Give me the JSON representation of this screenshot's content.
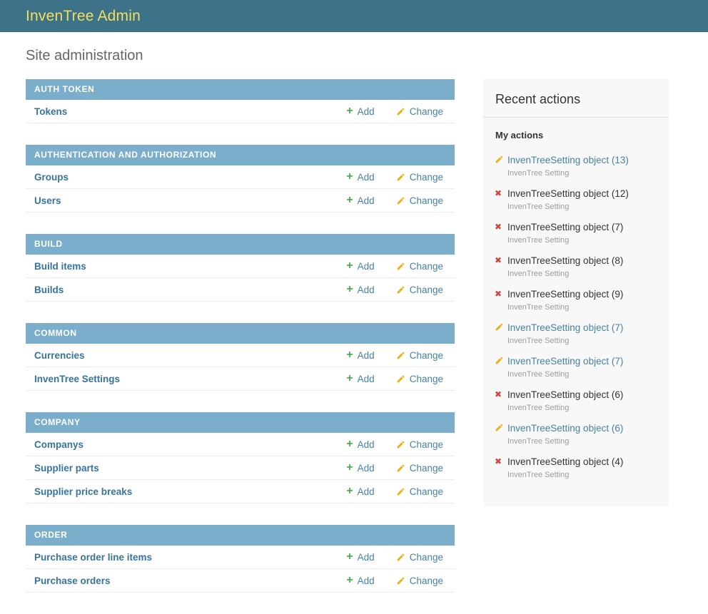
{
  "header": {
    "title": "InvenTree Admin"
  },
  "page": {
    "title": "Site administration"
  },
  "actions": {
    "add": "Add",
    "change": "Change"
  },
  "icons": {
    "plus": "+",
    "delete": "✖"
  },
  "colors": {
    "header_bg": "#3d7389",
    "header_title": "#f5dd5d",
    "caption_bg": "#7baeca",
    "model_link": "#36749d",
    "action_link": "#4682a2",
    "add_green": "#4caf50",
    "change_gold": "#e9b10e",
    "delete_red": "#ce4844",
    "sidebar_bg": "#f8f8f8"
  },
  "modules": [
    {
      "caption": "AUTH TOKEN",
      "rows": [
        {
          "name": "Tokens"
        }
      ]
    },
    {
      "caption": "AUTHENTICATION AND AUTHORIZATION",
      "rows": [
        {
          "name": "Groups"
        },
        {
          "name": "Users"
        }
      ]
    },
    {
      "caption": "BUILD",
      "rows": [
        {
          "name": "Build items"
        },
        {
          "name": "Builds"
        }
      ]
    },
    {
      "caption": "COMMON",
      "rows": [
        {
          "name": "Currencies"
        },
        {
          "name": "InvenTree Settings"
        }
      ]
    },
    {
      "caption": "COMPANY",
      "rows": [
        {
          "name": "Companys"
        },
        {
          "name": "Supplier parts"
        },
        {
          "name": "Supplier price breaks"
        }
      ]
    },
    {
      "caption": "ORDER",
      "rows": [
        {
          "name": "Purchase order line items"
        },
        {
          "name": "Purchase orders"
        }
      ]
    }
  ],
  "sidebar": {
    "title": "Recent actions",
    "subtitle": "My actions",
    "items": [
      {
        "type": "edit",
        "label": "InvenTreeSetting object (13)",
        "meta": "InvenTree Setting",
        "is_link": true
      },
      {
        "type": "delete",
        "label": "InvenTreeSetting object (12)",
        "meta": "InvenTree Setting",
        "is_link": false
      },
      {
        "type": "delete",
        "label": "InvenTreeSetting object (7)",
        "meta": "InvenTree Setting",
        "is_link": false
      },
      {
        "type": "delete",
        "label": "InvenTreeSetting object (8)",
        "meta": "InvenTree Setting",
        "is_link": false
      },
      {
        "type": "delete",
        "label": "InvenTreeSetting object (9)",
        "meta": "InvenTree Setting",
        "is_link": false
      },
      {
        "type": "edit",
        "label": "InvenTreeSetting object (7)",
        "meta": "InvenTree Setting",
        "is_link": true
      },
      {
        "type": "edit",
        "label": "InvenTreeSetting object (7)",
        "meta": "InvenTree Setting",
        "is_link": true
      },
      {
        "type": "delete",
        "label": "InvenTreeSetting object (6)",
        "meta": "InvenTree Setting",
        "is_link": false
      },
      {
        "type": "edit",
        "label": "InvenTreeSetting object (6)",
        "meta": "InvenTree Setting",
        "is_link": true
      },
      {
        "type": "delete",
        "label": "InvenTreeSetting object (4)",
        "meta": "InvenTree Setting",
        "is_link": false
      }
    ]
  }
}
